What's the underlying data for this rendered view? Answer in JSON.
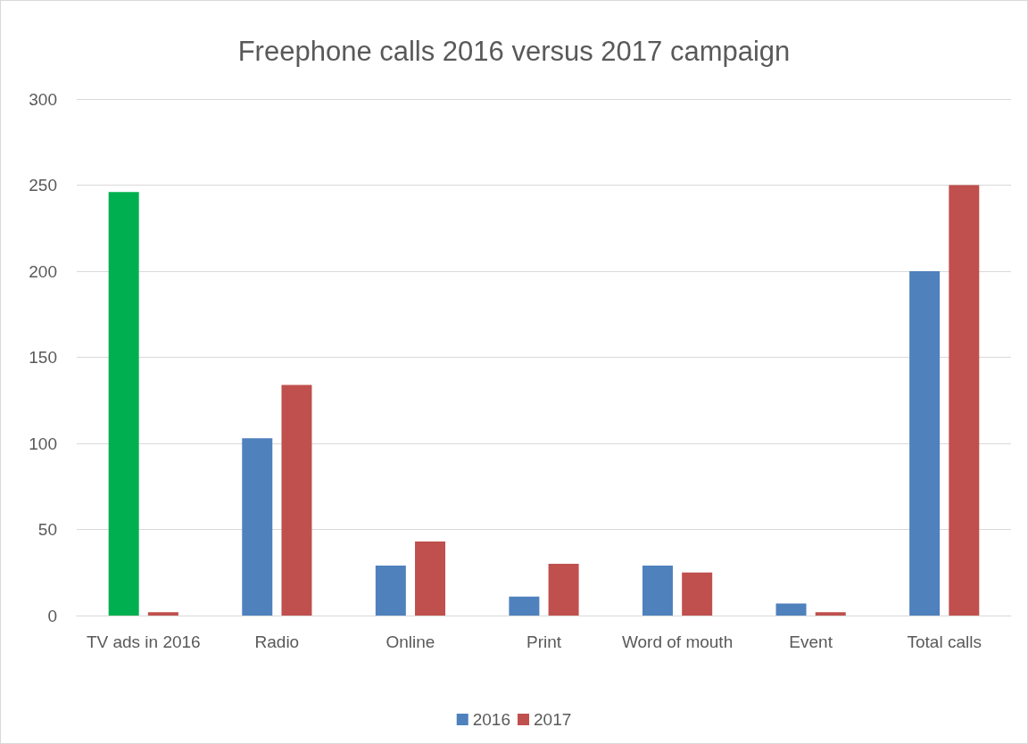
{
  "chart_data": {
    "type": "bar",
    "title": "Freephone calls 2016 versus 2017 campaign",
    "categories": [
      "TV ads in 2016",
      "Radio",
      "Online",
      "Print",
      "Word of mouth",
      "Event",
      "Total calls"
    ],
    "series": [
      {
        "name": "2016",
        "color": "#4f81bd",
        "colors": [
          "#00b050",
          "#4f81bd",
          "#4f81bd",
          "#4f81bd",
          "#4f81bd",
          "#4f81bd",
          "#4f81bd"
        ],
        "values": [
          246,
          103,
          29,
          11,
          29,
          7,
          200
        ]
      },
      {
        "name": "2017",
        "color": "#c0504d",
        "values": [
          2,
          134,
          43,
          30,
          25,
          2,
          250
        ]
      }
    ],
    "ylim": [
      0,
      300
    ],
    "yticks": [
      0,
      50,
      100,
      150,
      200,
      250,
      300
    ],
    "grid": "y",
    "legend": "bottom"
  }
}
